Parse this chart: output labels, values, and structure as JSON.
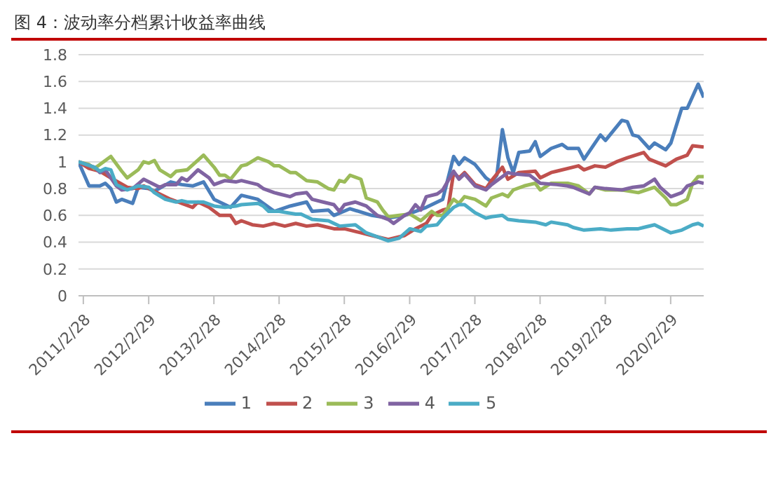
{
  "chart_data": {
    "type": "line",
    "title": "图 4：波动率分档累计收益率曲线",
    "xlim": [
      "2011-02-01",
      "2020-09-01"
    ],
    "xticks": [
      {
        "value": "2011-02-28",
        "label": "2011/2/28"
      },
      {
        "value": "2012-02-29",
        "label": "2012/2/29"
      },
      {
        "value": "2013-02-28",
        "label": "2013/2/28"
      },
      {
        "value": "2014-02-28",
        "label": "2014/2/28"
      },
      {
        "value": "2015-02-28",
        "label": "2015/2/28"
      },
      {
        "value": "2016-02-29",
        "label": "2016/2/29"
      },
      {
        "value": "2017-02-28",
        "label": "2017/2/28"
      },
      {
        "value": "2018-02-28",
        "label": "2018/2/28"
      },
      {
        "value": "2019-02-28",
        "label": "2019/2/28"
      },
      {
        "value": "2020-02-29",
        "label": "2020/2/29"
      }
    ],
    "ylim": [
      0,
      1.8
    ],
    "yticks": [
      0,
      0.2,
      0.4,
      0.6,
      0.8,
      1,
      1.2,
      1.4,
      1.6,
      1.8
    ],
    "grid": "y",
    "legend": "bottom",
    "line_style": "solid",
    "series": [
      {
        "name": "1",
        "color": "#4a7ebb",
        "x": [
          "2011-02",
          "2011-04",
          "2011-06",
          "2011-07",
          "2011-08",
          "2011-09",
          "2011-10",
          "2011-12",
          "2012-01",
          "2012-03",
          "2012-04",
          "2012-07",
          "2012-09",
          "2012-11",
          "2013-01",
          "2013-03",
          "2013-06",
          "2013-08",
          "2013-11",
          "2014-02",
          "2014-05",
          "2014-08",
          "2014-09",
          "2014-12",
          "2015-01",
          "2015-04",
          "2015-08",
          "2015-11",
          "2016-02",
          "2016-06",
          "2016-09",
          "2016-11",
          "2016-12",
          "2017-01",
          "2017-03",
          "2017-05",
          "2017-06",
          "2017-07",
          "2017-08",
          "2017-09",
          "2017-10",
          "2017-11",
          "2018-01",
          "2018-02",
          "2018-03",
          "2018-05",
          "2018-07",
          "2018-08",
          "2018-10",
          "2018-11",
          "2019-02",
          "2019-03",
          "2019-06",
          "2019-07",
          "2019-08",
          "2019-09",
          "2019-11",
          "2019-12",
          "2020-02",
          "2020-03",
          "2020-05",
          "2020-06",
          "2020-08",
          "2020-09"
        ],
        "values": [
          1.0,
          0.82,
          0.82,
          0.84,
          0.8,
          0.7,
          0.72,
          0.69,
          0.81,
          0.8,
          0.78,
          0.85,
          0.83,
          0.82,
          0.85,
          0.72,
          0.66,
          0.75,
          0.72,
          0.63,
          0.67,
          0.7,
          0.63,
          0.64,
          0.6,
          0.65,
          0.6,
          0.58,
          0.6,
          0.66,
          0.72,
          1.04,
          0.98,
          1.03,
          0.98,
          0.88,
          0.85,
          0.9,
          1.24,
          1.03,
          0.92,
          1.07,
          1.08,
          1.15,
          1.04,
          1.1,
          1.13,
          1.1,
          1.1,
          1.02,
          1.2,
          1.16,
          1.31,
          1.3,
          1.2,
          1.19,
          1.1,
          1.14,
          1.09,
          1.14,
          1.4,
          1.4,
          1.58,
          1.48
        ]
      },
      {
        "name": "2",
        "color": "#c0504d",
        "x": [
          "2011-02",
          "2011-04",
          "2011-06",
          "2011-08",
          "2011-11",
          "2012-01",
          "2012-02",
          "2012-03",
          "2012-07",
          "2012-09",
          "2012-11",
          "2012-12",
          "2013-02",
          "2013-04",
          "2013-06",
          "2013-07",
          "2013-08",
          "2013-10",
          "2013-12",
          "2014-02",
          "2014-04",
          "2014-06",
          "2014-08",
          "2014-10",
          "2015-01",
          "2015-03",
          "2015-06",
          "2015-08",
          "2015-11",
          "2016-02",
          "2016-04",
          "2016-06",
          "2016-07",
          "2016-09",
          "2016-10",
          "2016-11",
          "2016-12",
          "2017-01",
          "2017-03",
          "2017-05",
          "2017-06",
          "2017-08",
          "2017-09",
          "2017-11",
          "2018-02",
          "2018-03",
          "2018-05",
          "2018-06",
          "2018-10",
          "2018-11",
          "2019-01",
          "2019-03",
          "2019-05",
          "2019-07",
          "2019-10",
          "2019-11",
          "2020-02",
          "2020-04",
          "2020-06",
          "2020-07",
          "2020-09"
        ],
        "values": [
          1.0,
          0.95,
          0.93,
          0.88,
          0.81,
          0.8,
          0.82,
          0.8,
          0.72,
          0.69,
          0.66,
          0.7,
          0.66,
          0.6,
          0.6,
          0.54,
          0.56,
          0.53,
          0.52,
          0.54,
          0.52,
          0.54,
          0.52,
          0.53,
          0.5,
          0.5,
          0.47,
          0.45,
          0.42,
          0.45,
          0.5,
          0.54,
          0.6,
          0.64,
          0.65,
          0.92,
          0.88,
          0.92,
          0.83,
          0.8,
          0.86,
          0.96,
          0.87,
          0.92,
          0.93,
          0.88,
          0.92,
          0.93,
          0.97,
          0.94,
          0.97,
          0.96,
          1.0,
          1.03,
          1.07,
          1.02,
          0.97,
          1.02,
          1.05,
          1.12,
          1.11
        ]
      },
      {
        "name": "3",
        "color": "#9bbb59",
        "x": [
          "2011-02",
          "2011-04",
          "2011-05",
          "2011-07",
          "2011-08",
          "2011-10",
          "2011-11",
          "2012-01",
          "2012-02",
          "2012-03",
          "2012-04",
          "2012-05",
          "2012-07",
          "2012-08",
          "2012-10",
          "2013-01",
          "2013-03",
          "2013-04",
          "2013-05",
          "2013-06",
          "2013-08",
          "2013-09",
          "2013-11",
          "2014-01",
          "2014-02",
          "2014-03",
          "2014-05",
          "2014-06",
          "2014-08",
          "2014-10",
          "2014-12",
          "2015-01",
          "2015-02",
          "2015-03",
          "2015-04",
          "2015-06",
          "2015-07",
          "2015-09",
          "2015-10",
          "2015-11",
          "2016-01",
          "2016-03",
          "2016-05",
          "2016-07",
          "2016-08",
          "2016-09",
          "2016-11",
          "2016-12",
          "2017-01",
          "2017-03",
          "2017-05",
          "2017-06",
          "2017-08",
          "2017-09",
          "2017-10",
          "2017-12",
          "2018-02",
          "2018-03",
          "2018-05",
          "2018-08",
          "2018-10",
          "2018-12",
          "2019-01",
          "2019-03",
          "2019-06",
          "2019-09",
          "2019-12",
          "2020-02",
          "2020-03",
          "2020-04",
          "2020-06",
          "2020-07",
          "2020-08",
          "2020-09"
        ],
        "values": [
          1.0,
          0.98,
          0.95,
          1.01,
          1.04,
          0.93,
          0.88,
          0.94,
          1.0,
          0.99,
          1.01,
          0.94,
          0.89,
          0.93,
          0.94,
          1.05,
          0.96,
          0.9,
          0.9,
          0.87,
          0.97,
          0.98,
          1.03,
          1.0,
          0.97,
          0.97,
          0.92,
          0.92,
          0.86,
          0.85,
          0.8,
          0.79,
          0.86,
          0.85,
          0.9,
          0.87,
          0.73,
          0.7,
          0.64,
          0.59,
          0.6,
          0.61,
          0.56,
          0.63,
          0.6,
          0.6,
          0.72,
          0.69,
          0.74,
          0.72,
          0.67,
          0.73,
          0.76,
          0.74,
          0.79,
          0.82,
          0.84,
          0.79,
          0.84,
          0.84,
          0.82,
          0.76,
          0.81,
          0.79,
          0.79,
          0.77,
          0.81,
          0.73,
          0.68,
          0.68,
          0.72,
          0.84,
          0.89,
          0.89
        ]
      },
      {
        "name": "4",
        "color": "#8064a2",
        "x": [
          "2011-02",
          "2011-05",
          "2011-06",
          "2011-07",
          "2011-09",
          "2011-10",
          "2011-12",
          "2012-02",
          "2012-03",
          "2012-05",
          "2012-06",
          "2012-08",
          "2012-09",
          "2012-10",
          "2012-12",
          "2013-02",
          "2013-03",
          "2013-05",
          "2013-07",
          "2013-08",
          "2013-11",
          "2013-12",
          "2014-02",
          "2014-03",
          "2014-05",
          "2014-06",
          "2014-08",
          "2014-09",
          "2014-11",
          "2015-01",
          "2015-02",
          "2015-03",
          "2015-05",
          "2015-07",
          "2015-09",
          "2015-11",
          "2015-12",
          "2016-02",
          "2016-03",
          "2016-04",
          "2016-05",
          "2016-06",
          "2016-08",
          "2016-09",
          "2016-11",
          "2016-12",
          "2017-01",
          "2017-03",
          "2017-05",
          "2017-06",
          "2017-09",
          "2017-10",
          "2018-01",
          "2018-03",
          "2018-06",
          "2018-08",
          "2018-09",
          "2018-12",
          "2019-01",
          "2019-03",
          "2019-06",
          "2019-08",
          "2019-10",
          "2019-12",
          "2020-01",
          "2020-03",
          "2020-05",
          "2020-06",
          "2020-08",
          "2020-09"
        ],
        "values": [
          1.0,
          0.96,
          0.92,
          0.94,
          0.82,
          0.79,
          0.8,
          0.87,
          0.85,
          0.81,
          0.83,
          0.83,
          0.88,
          0.86,
          0.94,
          0.88,
          0.83,
          0.86,
          0.85,
          0.86,
          0.83,
          0.8,
          0.77,
          0.76,
          0.74,
          0.76,
          0.77,
          0.72,
          0.7,
          0.68,
          0.63,
          0.68,
          0.7,
          0.67,
          0.6,
          0.57,
          0.54,
          0.6,
          0.62,
          0.68,
          0.64,
          0.74,
          0.76,
          0.79,
          0.93,
          0.87,
          0.91,
          0.82,
          0.79,
          0.83,
          0.92,
          0.91,
          0.9,
          0.84,
          0.83,
          0.82,
          0.81,
          0.76,
          0.81,
          0.8,
          0.79,
          0.81,
          0.82,
          0.87,
          0.81,
          0.74,
          0.77,
          0.82,
          0.85,
          0.84
        ]
      },
      {
        "name": "5",
        "color": "#4bacc6",
        "x": [
          "2011-02",
          "2011-05",
          "2011-06",
          "2011-07",
          "2011-08",
          "2011-09",
          "2011-11",
          "2012-01",
          "2012-03",
          "2012-04",
          "2012-06",
          "2012-08",
          "2012-09",
          "2012-10",
          "2013-01",
          "2013-03",
          "2013-05",
          "2013-07",
          "2013-08",
          "2013-11",
          "2013-12",
          "2014-01",
          "2014-03",
          "2014-06",
          "2014-07",
          "2014-09",
          "2014-12",
          "2015-02",
          "2015-05",
          "2015-07",
          "2015-09",
          "2015-11",
          "2016-01",
          "2016-03",
          "2016-05",
          "2016-06",
          "2016-08",
          "2016-09",
          "2016-11",
          "2016-12",
          "2017-01",
          "2017-03",
          "2017-05",
          "2017-06",
          "2017-08",
          "2017-09",
          "2017-11",
          "2018-02",
          "2018-04",
          "2018-05",
          "2018-08",
          "2018-09",
          "2018-11",
          "2019-02",
          "2019-04",
          "2019-07",
          "2019-09",
          "2019-10",
          "2019-12",
          "2020-03",
          "2020-05",
          "2020-07",
          "2020-08",
          "2020-09"
        ],
        "values": [
          1.0,
          0.96,
          0.93,
          0.95,
          0.94,
          0.83,
          0.79,
          0.82,
          0.81,
          0.77,
          0.72,
          0.7,
          0.71,
          0.7,
          0.7,
          0.67,
          0.66,
          0.67,
          0.68,
          0.69,
          0.67,
          0.63,
          0.63,
          0.61,
          0.61,
          0.57,
          0.56,
          0.52,
          0.53,
          0.47,
          0.44,
          0.41,
          0.43,
          0.5,
          0.48,
          0.52,
          0.53,
          0.58,
          0.66,
          0.68,
          0.68,
          0.62,
          0.58,
          0.59,
          0.6,
          0.57,
          0.56,
          0.55,
          0.53,
          0.55,
          0.53,
          0.51,
          0.49,
          0.5,
          0.49,
          0.5,
          0.5,
          0.51,
          0.53,
          0.47,
          0.49,
          0.53,
          0.54,
          0.52
        ]
      }
    ]
  }
}
